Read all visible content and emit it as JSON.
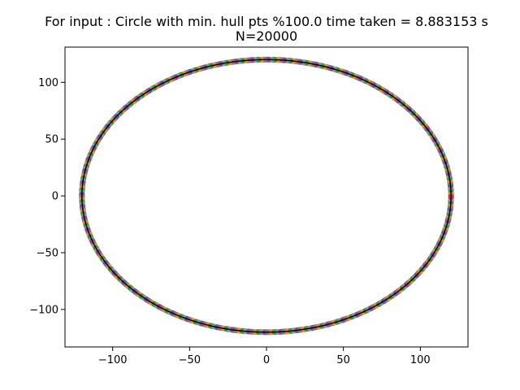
{
  "chart_data": {
    "type": "scatter",
    "title": "For input : Circle with min. hull pts %100.0 time taken = 8.883153 s",
    "subtitle": "N=20000",
    "xlabel": "",
    "ylabel": "",
    "xlim": [
      -131,
      131
    ],
    "ylim": [
      -133,
      131
    ],
    "xticks": [
      -100,
      -50,
      0,
      50,
      100
    ],
    "yticks": [
      100,
      50,
      0,
      -50,
      -100
    ],
    "xtick_labels": [
      "−100",
      "−50",
      "0",
      "50",
      "100"
    ],
    "ytick_labels": [
      "100",
      "50",
      "0",
      "−50",
      "−100"
    ],
    "grid": false,
    "legend": "none",
    "circle": {
      "center": [
        0,
        0
      ],
      "radius": 120
    },
    "hull_line_color": "#000000",
    "point_colors": [
      "#1f77b4",
      "#ff7f0e",
      "#2ca02c",
      "#d62728",
      "#9467bd",
      "#8c564b",
      "#e377c2",
      "#7f7f7f",
      "#bcbd22",
      "#17becf"
    ],
    "n_points": 20000
  }
}
